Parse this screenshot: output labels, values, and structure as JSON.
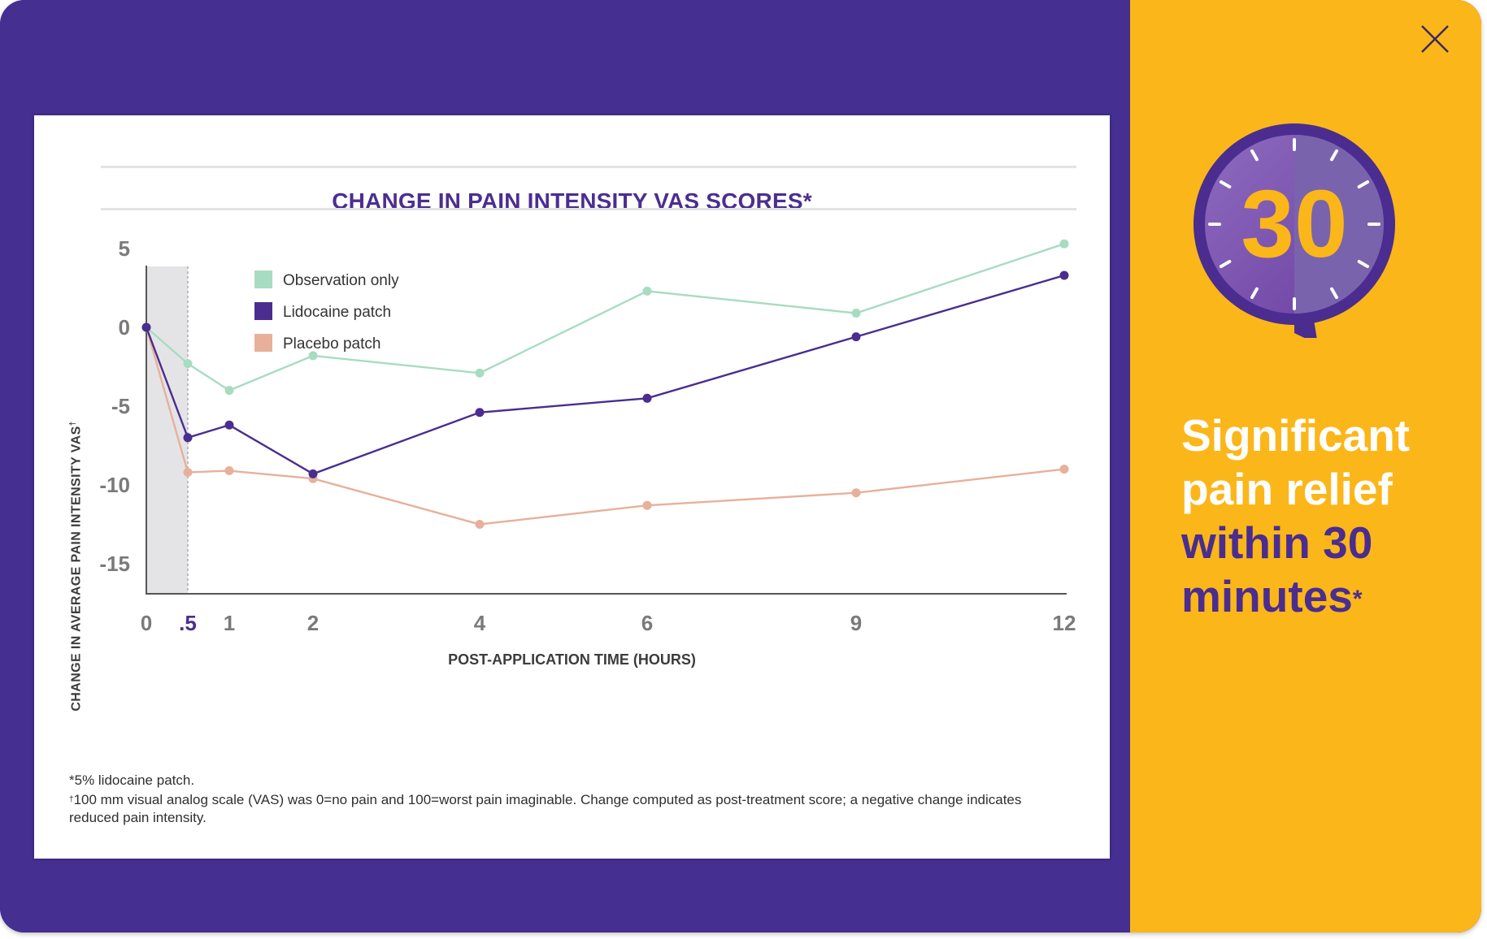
{
  "chart_data": {
    "type": "line",
    "title": "CHANGE IN PAIN INTENSITY VAS SCORES*",
    "xlabel": "POST-APPLICATION TIME (HOURS)",
    "ylabel": "CHANGE IN AVERAGE PAIN INTENSITY VAS",
    "ylabel_mark": "†",
    "x": [
      0,
      0.5,
      1,
      2,
      4,
      6,
      9,
      12
    ],
    "x_tick_labels": [
      "0",
      ".5",
      "1",
      "2",
      "4",
      "6",
      "9",
      "12"
    ],
    "highlight_tick": ".5",
    "highlight_region": [
      0,
      0.5
    ],
    "y_ticks": [
      5,
      0,
      -5,
      -10,
      -15
    ],
    "y_tick_labels": [
      "5",
      "0",
      "-5",
      "-10",
      "-15"
    ],
    "ylim": [
      -15,
      5
    ],
    "legend_position": "top-left",
    "series": [
      {
        "name": "Observation only",
        "color": "#a8dcc0",
        "values": [
          0,
          -2.3,
          -4,
          -1.8,
          -2.9,
          2.3,
          0.9,
          5.3
        ]
      },
      {
        "name": "Lidocaine patch",
        "color": "#4a2d8f",
        "values": [
          0,
          -7,
          -6.2,
          -9.3,
          -5.4,
          -4.5,
          -0.6,
          3.3
        ]
      },
      {
        "name": "Placebo patch",
        "color": "#e8b09a",
        "values": [
          0,
          -9.2,
          -9.1,
          -9.6,
          -12.5,
          -11.3,
          -10.5,
          -9
        ]
      }
    ]
  },
  "footnotes": {
    "note1": "*5% lidocaine patch.",
    "note2_mark": "†",
    "note2": "100 mm visual analog scale (VAS) was 0=no pain and 100=worst pain imaginable. Change computed as post-treatment score; a negative change indicates reduced pain intensity."
  },
  "timer": {
    "number": "30"
  },
  "headline": {
    "line1": "Significant",
    "line2": "pain relief",
    "line3": "within 30",
    "line4": "minutes",
    "mark": "*"
  },
  "colors": {
    "purple": "#452f90",
    "gold": "#fbb61a",
    "observation": "#a8dcc0",
    "lidocaine": "#4a2d8f",
    "placebo": "#e8b09a"
  },
  "close_icon": "close-icon"
}
